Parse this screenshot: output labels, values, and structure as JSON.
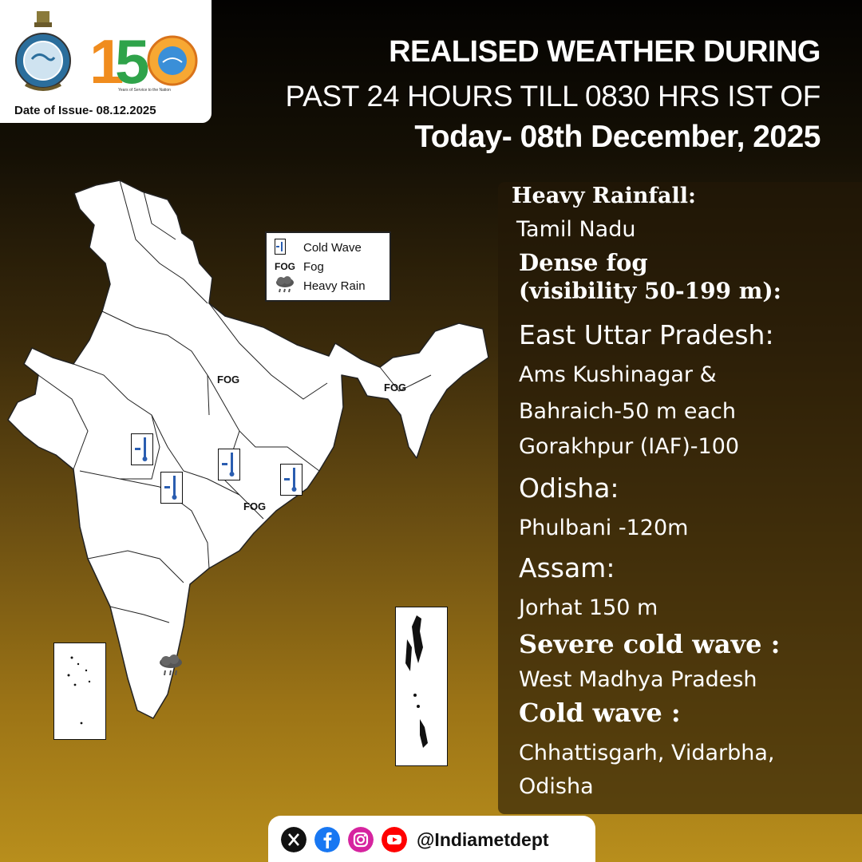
{
  "header": {
    "date_of_issue": "Date of Issue- 08.12.2025",
    "logo_number": "150",
    "logo_tagline": "Years of Service to the Nation",
    "title_line1": "REALISED WEATHER DURING",
    "title_line2": "PAST 24 HOURS TILL 0830 HRS IST OF",
    "title_line3": "Today- 08th December, 2025"
  },
  "legend": {
    "items": [
      {
        "symbol": "cold-wave-icon",
        "label": "Cold Wave"
      },
      {
        "symbol": "FOG",
        "label": "Fog"
      },
      {
        "symbol": "heavy-rain-icon",
        "label": "Heavy Rain"
      }
    ]
  },
  "map_labels": {
    "fog": "FOG"
  },
  "panel": {
    "heavy_rainfall_heading": "Heavy Rainfall:",
    "heavy_rainfall_region": "Tamil Nadu",
    "dense_fog_heading": "Dense fog",
    "dense_fog_subheading": "(visibility 50-199 m):",
    "east_up_heading": "East Uttar Pradesh:",
    "east_up_line1": "Ams Kushinagar &",
    "east_up_line2": "Bahraich-50 m each",
    "east_up_line3": "Gorakhpur (IAF)-100",
    "odisha_heading": "Odisha:",
    "odisha_line": "Phulbani -120m",
    "assam_heading": "Assam:",
    "assam_line": "Jorhat 150 m",
    "severe_cold_heading": "Severe cold wave :",
    "severe_cold_region": "West Madhya Pradesh",
    "cold_wave_heading": "Cold wave :",
    "cold_wave_line1": "Chhattisgarh, Vidarbha,",
    "cold_wave_line2": "Odisha"
  },
  "footer": {
    "social_icons": [
      "x-icon",
      "facebook-icon",
      "instagram-icon",
      "youtube-icon"
    ],
    "handle": "@Indiametdept"
  },
  "colors": {
    "background_top": "#030201",
    "background_bottom": "#b88e1c",
    "text": "#ffffff",
    "facebook": "#1877f2",
    "youtube": "#ff0000",
    "logo_orange": "#f08c1e"
  }
}
